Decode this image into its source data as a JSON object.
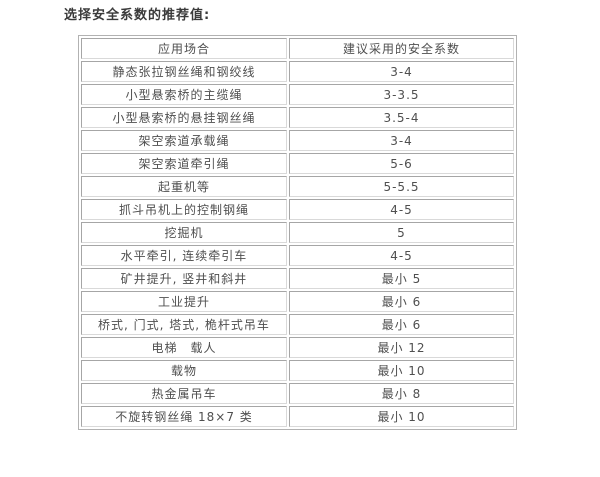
{
  "page": {
    "title": "选择安全系数的推荐值:"
  },
  "table": {
    "headers": [
      "应用场合",
      "建议采用的安全系数"
    ],
    "rows": [
      {
        "application": "静态张拉钢丝绳和钢绞线",
        "factor": "3-4"
      },
      {
        "application": "小型悬索桥的主缆绳",
        "factor": "3-3.5"
      },
      {
        "application": "小型悬索桥的悬挂钢丝绳",
        "factor": "3.5-4"
      },
      {
        "application": "架空索道承载绳",
        "factor": "3-4"
      },
      {
        "application": "架空索道牵引绳",
        "factor": "5-6"
      },
      {
        "application": "起重机等",
        "factor": "5-5.5"
      },
      {
        "application": "抓斗吊机上的控制钢绳",
        "factor": "4-5"
      },
      {
        "application": "挖掘机",
        "factor": "5"
      },
      {
        "application": "水平牵引, 连续牵引车",
        "factor": "4-5"
      },
      {
        "application": "矿井提升, 竖井和斜井",
        "factor": "最小 5"
      },
      {
        "application": "工业提升",
        "factor": "最小 6"
      },
      {
        "application": "桥式, 门式, 塔式, 桅杆式吊车",
        "factor": "最小 6"
      },
      {
        "application": "电梯　载人",
        "factor": "最小 12"
      },
      {
        "application": "载物",
        "factor": "最小 10"
      },
      {
        "application": "热金属吊车",
        "factor": "最小 8"
      },
      {
        "application": "不旋转钢丝绳 18×7 类",
        "factor": "最小 10"
      }
    ]
  },
  "colors": {
    "background": "#ffffff",
    "text": "#4f4f4f",
    "title_text": "#3a3a3a",
    "border_dark": "#a6a6a6",
    "border_light": "#d9d9d9"
  }
}
